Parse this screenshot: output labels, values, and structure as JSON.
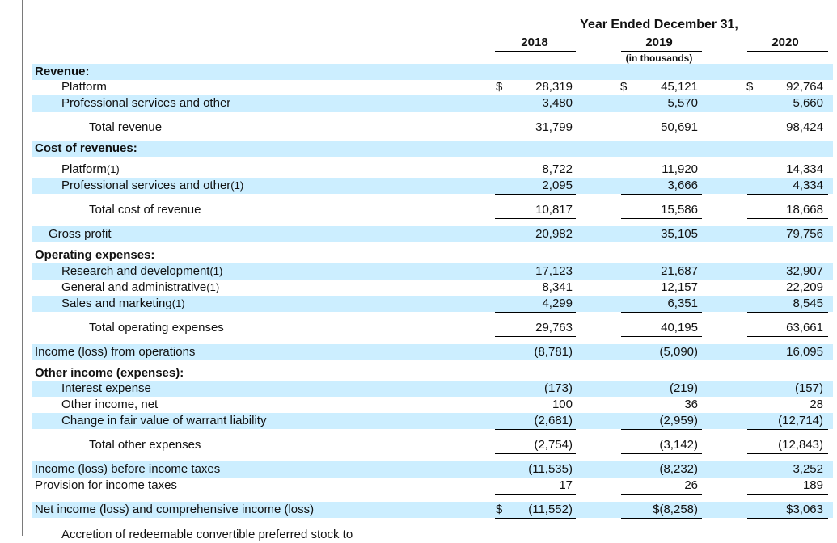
{
  "header": {
    "title": "Year Ended December 31,",
    "years": [
      "2018",
      "2019",
      "2020"
    ],
    "subtitle": "(in thousands)"
  },
  "rows": [
    {
      "label": "Revenue:",
      "bold": true,
      "level": 0,
      "shaded": true
    },
    {
      "label": "Platform",
      "level": 1,
      "dollar": true,
      "values": [
        "28,319",
        "45,121",
        "92,764"
      ]
    },
    {
      "label": "Professional services and other",
      "level": 1,
      "shaded": true,
      "values": [
        "3,480",
        "5,570",
        "5,660"
      ],
      "underline": "single"
    },
    {
      "label": "Total revenue",
      "level": 2,
      "values": [
        "31,799",
        "50,691",
        "98,424"
      ]
    },
    {
      "label": "Cost of revenues:",
      "bold": true,
      "level": 0,
      "shaded": true
    },
    {
      "label": "Platform",
      "note": "(1)",
      "level": 1,
      "values": [
        "8,722",
        "11,920",
        "14,334"
      ]
    },
    {
      "label": "Professional services and other",
      "note": "(1)",
      "level": 1,
      "shaded": true,
      "values": [
        "2,095",
        "3,666",
        "4,334"
      ],
      "underline": "single"
    },
    {
      "label": "Total cost of revenue",
      "level": 2,
      "values": [
        "10,817",
        "15,586",
        "18,668"
      ],
      "underline": "single"
    },
    {
      "label": "Gross profit",
      "level": 0.5,
      "shaded": true,
      "values": [
        "20,982",
        "35,105",
        "79,756"
      ]
    },
    {
      "label": "Operating expenses:",
      "bold": true,
      "level": 0
    },
    {
      "label": "Research and development",
      "note": "(1)",
      "level": 1,
      "shaded": true,
      "values": [
        "17,123",
        "21,687",
        "32,907"
      ]
    },
    {
      "label": "General and administrative",
      "note": "(1)",
      "level": 1,
      "values": [
        "8,341",
        "12,157",
        "22,209"
      ]
    },
    {
      "label": "Sales and marketing",
      "note": "(1)",
      "level": 1,
      "shaded": true,
      "values": [
        "4,299",
        "6,351",
        "8,545"
      ],
      "underline": "single"
    },
    {
      "label": "Total operating expenses",
      "level": 2,
      "values": [
        "29,763",
        "40,195",
        "63,661"
      ],
      "underline": "single"
    },
    {
      "label": "Income (loss) from operations",
      "level": 0,
      "shaded": true,
      "values": [
        "(8,781)",
        "(5,090)",
        "16,095"
      ]
    },
    {
      "label": "Other income (expenses):",
      "bold": true,
      "level": 0
    },
    {
      "label": "Interest expense",
      "level": 1,
      "shaded": true,
      "values": [
        "(173)",
        "(219)",
        "(157)"
      ]
    },
    {
      "label": "Other income, net",
      "level": 1,
      "values": [
        "100",
        "36",
        "28"
      ]
    },
    {
      "label": "Change in fair value of warrant liability",
      "level": 1,
      "shaded": true,
      "values": [
        "(2,681)",
        "(2,959)",
        "(12,714)"
      ],
      "underline": "single"
    },
    {
      "label": "Total other expenses",
      "level": 2,
      "values": [
        "(2,754)",
        "(3,142)",
        "(12,843)"
      ],
      "underline": "single"
    },
    {
      "label": "Income (loss) before income taxes",
      "level": 0,
      "shaded": true,
      "values": [
        "(11,535)",
        "(8,232)",
        "3,252"
      ]
    },
    {
      "label": "Provision for income taxes",
      "level": 0,
      "values": [
        "17",
        "26",
        "189"
      ],
      "underline": "single"
    },
    {
      "label": "Net income (loss) and comprehensive income (loss)",
      "level": 0,
      "shaded": true,
      "dollar_first_only": true,
      "values": [
        "(11,552)",
        "$(8,258)",
        "$3,063"
      ],
      "underline": "double"
    }
  ],
  "cutoff_text": "Accretion of redeemable convertible preferred stock to"
}
